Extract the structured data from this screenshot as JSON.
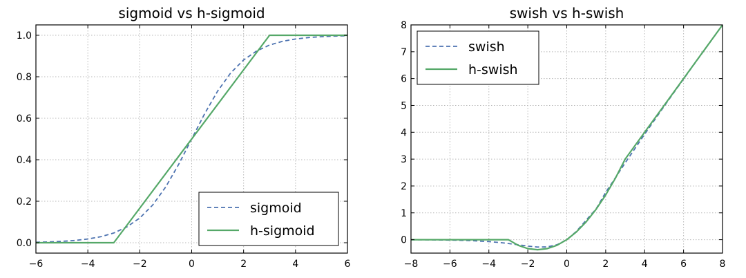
{
  "chart_data": [
    {
      "type": "line",
      "title": "sigmoid vs h-sigmoid",
      "xlim": [
        -6,
        6
      ],
      "ylim": [
        -0.05,
        1.05
      ],
      "xticks": [
        -6,
        -4,
        -2,
        0,
        2,
        4,
        6
      ],
      "yticks": [
        0.0,
        0.2,
        0.4,
        0.6,
        0.8,
        1.0
      ],
      "ytick_labels": [
        "0.0",
        "0.2",
        "0.4",
        "0.6",
        "0.8",
        "1.0"
      ],
      "xtick_labels": [
        "−6",
        "−4",
        "−2",
        "0",
        "2",
        "4",
        "6"
      ],
      "grid": true,
      "legend_position": "lower-right",
      "series": [
        {
          "name": "sigmoid",
          "style": "dashed",
          "color": "#4c72b0",
          "x": [
            -6,
            -5.5,
            -5,
            -4.5,
            -4,
            -3.5,
            -3,
            -2.5,
            -2,
            -1.5,
            -1,
            -0.5,
            0,
            0.5,
            1,
            1.5,
            2,
            2.5,
            3,
            3.5,
            4,
            4.5,
            5,
            5.5,
            6
          ],
          "y": [
            0.0025,
            0.0041,
            0.0067,
            0.011,
            0.018,
            0.029,
            0.047,
            0.076,
            0.119,
            0.182,
            0.269,
            0.378,
            0.5,
            0.622,
            0.731,
            0.818,
            0.881,
            0.924,
            0.953,
            0.971,
            0.982,
            0.989,
            0.993,
            0.996,
            0.9975
          ]
        },
        {
          "name": "h-sigmoid",
          "style": "solid",
          "color": "#55a868",
          "x": [
            -6,
            -3,
            3,
            6
          ],
          "y": [
            0,
            0,
            1,
            1
          ]
        }
      ]
    },
    {
      "type": "line",
      "title": "swish vs h-swish",
      "xlim": [
        -8,
        8
      ],
      "ylim": [
        -0.5,
        8
      ],
      "xticks": [
        -8,
        -6,
        -4,
        -2,
        0,
        2,
        4,
        6,
        8
      ],
      "yticks": [
        0,
        1,
        2,
        3,
        4,
        5,
        6,
        7,
        8
      ],
      "ytick_labels": [
        "0",
        "1",
        "2",
        "3",
        "4",
        "5",
        "6",
        "7",
        "8"
      ],
      "xtick_labels": [
        "−8",
        "−6",
        "−4",
        "−2",
        "0",
        "2",
        "4",
        "6",
        "8"
      ],
      "grid": true,
      "legend_position": "upper-left",
      "series": [
        {
          "name": "swish",
          "style": "dashed",
          "color": "#4c72b0",
          "x": [
            -8,
            -7,
            -6,
            -5,
            -4,
            -3.5,
            -3,
            -2.5,
            -2,
            -1.5,
            -1,
            -0.5,
            0,
            0.5,
            1,
            1.5,
            2,
            3,
            4,
            5,
            6,
            7,
            8
          ],
          "y": [
            -0.003,
            -0.006,
            -0.015,
            -0.033,
            -0.072,
            -0.102,
            -0.142,
            -0.189,
            -0.238,
            -0.274,
            -0.269,
            -0.189,
            0,
            0.311,
            0.731,
            1.137,
            1.762,
            2.858,
            3.928,
            4.967,
            5.985,
            6.994,
            7.997
          ]
        },
        {
          "name": "h-swish",
          "style": "solid",
          "color": "#55a868",
          "x": [
            -8,
            -3,
            -2.5,
            -2,
            -1.5,
            -1,
            -0.5,
            0,
            0.5,
            1,
            1.5,
            2,
            2.5,
            3,
            4,
            5,
            6,
            7,
            8
          ],
          "y": [
            0,
            0,
            -0.208,
            -0.333,
            -0.375,
            -0.333,
            -0.208,
            0,
            0.292,
            0.667,
            1.125,
            1.667,
            2.292,
            3,
            4,
            5,
            6,
            7,
            8
          ]
        }
      ]
    }
  ]
}
